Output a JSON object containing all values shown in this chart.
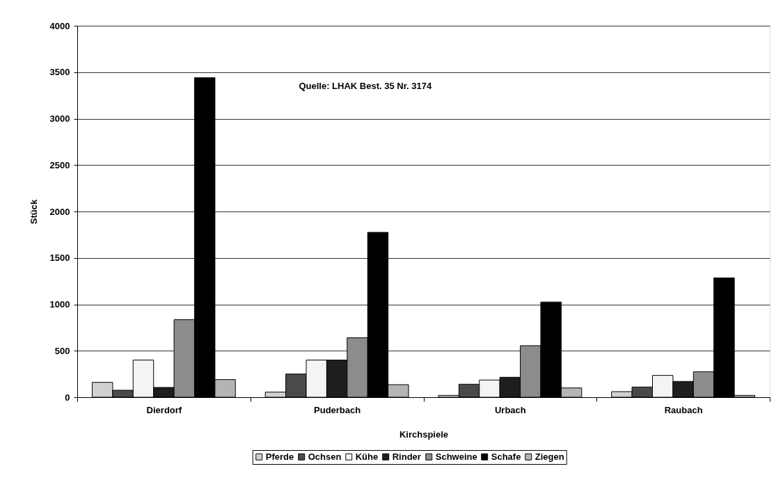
{
  "chart_data": {
    "type": "bar",
    "xlabel": "Kirchspiele",
    "ylabel": "Stück",
    "annotations": [
      "Quelle: LHAK Best. 35 Nr. 3174"
    ],
    "categories": [
      "Dierdorf",
      "Puderbach",
      "Urbach",
      "Raubach"
    ],
    "series": [
      {
        "name": "Pferde",
        "color": "#d0d0d0",
        "values": [
          160,
          55,
          20,
          60
        ]
      },
      {
        "name": "Ochsen",
        "color": "#4a4a4a",
        "values": [
          75,
          250,
          140,
          110
        ]
      },
      {
        "name": "Kühe",
        "color": "#f4f4f4",
        "values": [
          400,
          400,
          185,
          235
        ]
      },
      {
        "name": "Rinder",
        "color": "#1e1e1e",
        "values": [
          105,
          400,
          215,
          170
        ]
      },
      {
        "name": "Schweine",
        "color": "#8c8c8c",
        "values": [
          835,
          640,
          555,
          275
        ]
      },
      {
        "name": "Schafe",
        "color": "#000000",
        "values": [
          3440,
          1775,
          1025,
          1285
        ]
      },
      {
        "name": "Ziegen",
        "color": "#b4b4b4",
        "values": [
          190,
          135,
          100,
          20
        ]
      }
    ],
    "ylim": [
      0,
      4000
    ],
    "yticks": [
      0,
      500,
      1000,
      1500,
      2000,
      2500,
      3000,
      3500,
      4000
    ],
    "grid": "y",
    "legend": "bottom"
  }
}
